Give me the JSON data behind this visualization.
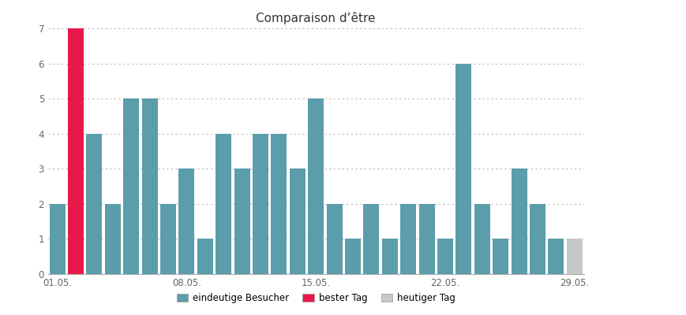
{
  "title": "Comparaison d’être",
  "bar_values": [
    2,
    7,
    4,
    2,
    5,
    5,
    2,
    3,
    1,
    4,
    3,
    4,
    4,
    3,
    5,
    2,
    1,
    2,
    1,
    2,
    2,
    1,
    6,
    2,
    1,
    3,
    2,
    1,
    1
  ],
  "bar_colors": [
    "#5b9daa",
    "#e8184a",
    "#5b9daa",
    "#5b9daa",
    "#5b9daa",
    "#5b9daa",
    "#5b9daa",
    "#5b9daa",
    "#5b9daa",
    "#5b9daa",
    "#5b9daa",
    "#5b9daa",
    "#5b9daa",
    "#5b9daa",
    "#5b9daa",
    "#5b9daa",
    "#5b9daa",
    "#5b9daa",
    "#5b9daa",
    "#5b9daa",
    "#5b9daa",
    "#5b9daa",
    "#5b9daa",
    "#5b9daa",
    "#5b9daa",
    "#5b9daa",
    "#5b9daa",
    "#5b9daa",
    "#c8c8c8"
  ],
  "xtick_labels": [
    "01.05.",
    "08.05.",
    "15.05.",
    "22.05.",
    "29.05."
  ],
  "xtick_positions": [
    1,
    8,
    15,
    22,
    29
  ],
  "ylim": [
    0,
    7
  ],
  "yticks": [
    0,
    1,
    2,
    3,
    4,
    5,
    6,
    7
  ],
  "legend_labels": [
    "eindeutige Besucher",
    "bester Tag",
    "heutiger Tag"
  ],
  "legend_colors": [
    "#5b9daa",
    "#e8184a",
    "#c8c8c8"
  ],
  "bg_color": "#ffffff",
  "grid_color": "#bbbbbb",
  "title_fontsize": 11,
  "axis_fontsize": 8.5,
  "legend_fontsize": 8.5
}
